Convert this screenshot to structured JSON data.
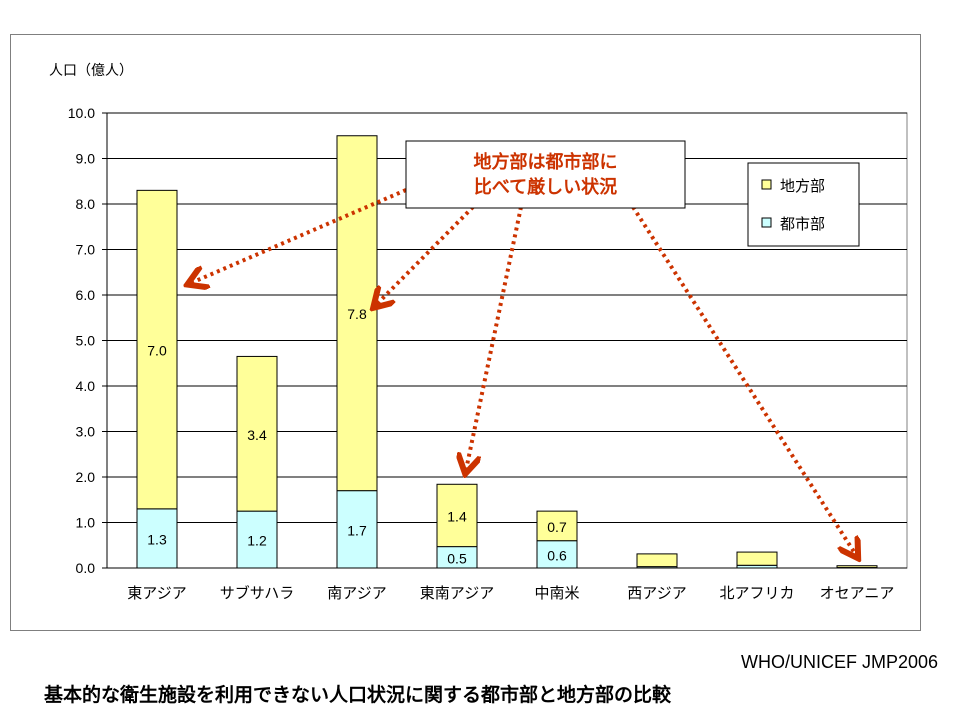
{
  "chart_data": {
    "type": "bar",
    "stacked": true,
    "ylabel": "人口（億人）",
    "ylim": [
      0,
      10
    ],
    "yticks": [
      "0.0",
      "1.0",
      "2.0",
      "3.0",
      "4.0",
      "5.0",
      "6.0",
      "7.0",
      "8.0",
      "9.0",
      "10.0"
    ],
    "grid": true,
    "categories": [
      "東アジア",
      "サブサハラ",
      "南アジア",
      "東南アジア",
      "中南米",
      "西アジア",
      "北アフリカ",
      "オセアニア"
    ],
    "series": [
      {
        "name": "都市部",
        "color": "#ccffff",
        "values": [
          1.3,
          1.25,
          1.7,
          0.47,
          0.6,
          0.03,
          0.06,
          0.01
        ],
        "labels": [
          "1.3",
          "1.2",
          "1.7",
          "0.5",
          "0.6",
          "",
          "",
          ""
        ]
      },
      {
        "name": "地方部",
        "color": "#ffff99",
        "values": [
          7.0,
          3.4,
          7.8,
          1.37,
          0.65,
          0.28,
          0.29,
          0.04
        ],
        "labels": [
          "7.0",
          "3.4",
          "7.8",
          "1.4",
          "0.7",
          "",
          "",
          ""
        ]
      }
    ],
    "legend": {
      "placement": "top-right",
      "order": [
        "地方部",
        "都市部"
      ]
    },
    "annotation": {
      "lines": [
        "地方部は都市部に",
        "比べて厳しい状況"
      ],
      "color": "#cc3300",
      "targets": [
        "東アジア",
        "南アジア",
        "東南アジア",
        "オセアニア"
      ]
    }
  },
  "source": "WHO/UNICEF JMP2006",
  "caption": "基本的な衛生施設を利用できない人口状況に関する都市部と地方部の比較"
}
